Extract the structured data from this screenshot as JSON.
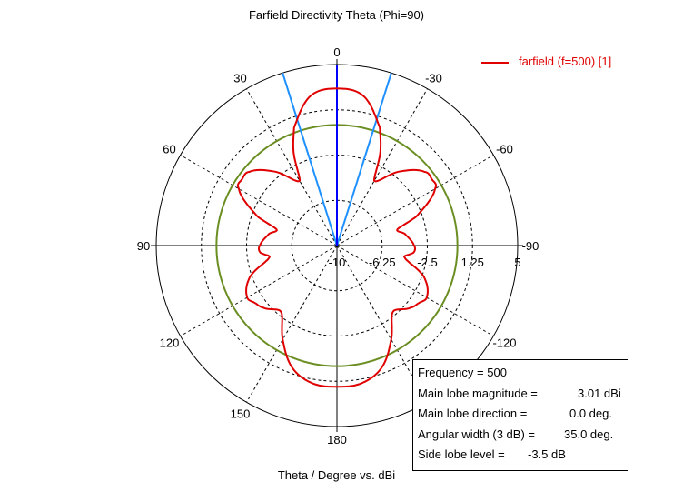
{
  "title": "Farfield Directivity Theta (Phi=90)",
  "xlabel": "Theta / Degree vs. dBi",
  "legend": {
    "label": "farfield (f=500) [1]"
  },
  "info": {
    "frequency": "Frequency = 500",
    "mag_label": "Main lobe magnitude =",
    "mag_value": "3.01 dBi",
    "dir_label": "Main lobe direction =",
    "dir_value": "0.0 deg.",
    "width_label": "Angular width (3 dB) =",
    "width_value": "35.0 deg.",
    "side_label": "Side lobe level =",
    "side_value": "-3.5 dB"
  },
  "chart_data": {
    "type": "polar",
    "title": "Farfield Directivity Theta (Phi=90)",
    "xlabel": "Theta / Degree vs. dBi",
    "r_min": -10,
    "r_max": 5,
    "radial_ticks": [
      -10,
      -6.25,
      -2.5,
      1.25,
      5
    ],
    "radial_tick_labels": [
      "-10",
      "-6.25",
      "-2.5",
      "1.25",
      "5"
    ],
    "angle_ticks": [
      {
        "angle": 0,
        "label": "0"
      },
      {
        "angle": -30,
        "label": "-30"
      },
      {
        "angle": -60,
        "label": "-60"
      },
      {
        "angle": -90,
        "label": "-90"
      },
      {
        "angle": -120,
        "label": "-120"
      },
      {
        "angle": 180,
        "label": "180"
      },
      {
        "angle": 150,
        "label": "150"
      },
      {
        "angle": 120,
        "label": "120"
      },
      {
        "angle": 90,
        "label": "90"
      },
      {
        "angle": 60,
        "label": "60"
      },
      {
        "angle": 30,
        "label": "30"
      }
    ],
    "series": [
      {
        "name": "farfield (f=500) [1]",
        "color": "#e00000",
        "theta_deg": [
          0,
          10,
          20,
          25,
          30,
          40,
          50,
          55,
          60,
          70,
          75,
          80,
          90,
          95,
          100,
          110,
          120,
          125,
          130,
          140,
          150,
          160,
          170,
          180,
          190,
          200,
          210,
          220,
          230,
          235,
          240,
          250,
          260,
          265,
          270,
          280,
          285,
          290,
          300,
          305,
          310,
          320,
          330,
          335,
          340,
          350
        ],
        "directivity_dbi": [
          3.01,
          2.6,
          0.4,
          -1.5,
          -3.8,
          -2.0,
          -0.5,
          -0.4,
          -0.6,
          -3.0,
          -4.8,
          -4.3,
          -3.6,
          -3.6,
          -4.3,
          -2.3,
          -1.4,
          -1.7,
          -2.0,
          -2.8,
          -1.0,
          0.8,
          1.6,
          1.7,
          1.6,
          0.8,
          -1.0,
          -2.8,
          -2.0,
          -1.7,
          -1.4,
          -2.3,
          -4.3,
          -3.6,
          -3.6,
          -4.3,
          -4.8,
          -3.0,
          -0.6,
          -0.4,
          -0.5,
          -2.0,
          -3.8,
          -1.5,
          0.4,
          2.6
        ]
      }
    ],
    "reference_lines": {
      "level_circle_dbi": -0.0,
      "level_circle_color": "#6b8e23",
      "main_lobe_direction_deg": 0,
      "main_lobe_color": "#0000ff",
      "beamwidth_deg": 35,
      "beamwidth_color": "#1e90ff"
    },
    "grid": true
  }
}
